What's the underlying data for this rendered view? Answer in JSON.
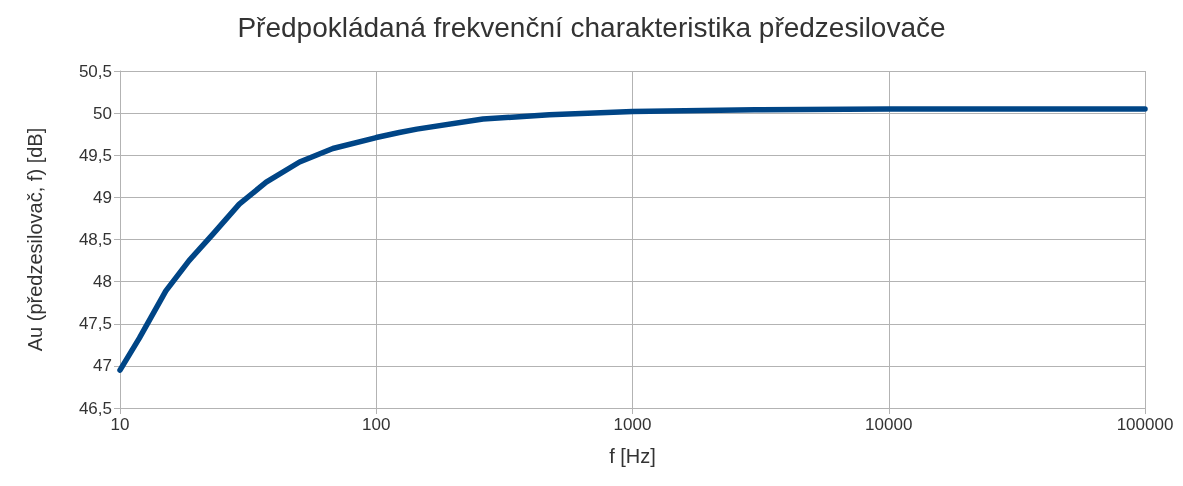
{
  "chart_data": {
    "type": "line",
    "title": "Předpokládaná frekvenční charakteristika předzesilovače",
    "xlabel": "f [Hz]",
    "ylabel": "Au (předzesilovač, f) [dB]",
    "x": [
      10,
      11.9,
      15.1,
      18.6,
      23,
      29.2,
      37.2,
      50.2,
      67.7,
      100,
      123,
      144,
      261,
      474,
      1000,
      3000,
      10000,
      30000,
      100000
    ],
    "series": [
      {
        "color": "#004586",
        "values": [
          46.95,
          47.33,
          47.89,
          48.25,
          48.56,
          48.92,
          49.18,
          49.42,
          49.58,
          49.71,
          49.77,
          49.81,
          49.93,
          49.98,
          50.02,
          50.04,
          50.05,
          50.05,
          50.05
        ]
      }
    ],
    "log": "x",
    "xlim": [
      10,
      100000
    ],
    "xticks": [
      10,
      100,
      1000,
      10000,
      100000
    ],
    "ylim": [
      46.5,
      50.5
    ],
    "yticks": [
      {
        "value": 46.5,
        "label": "46,5"
      },
      47,
      {
        "value": 47.5,
        "label": "47,5"
      },
      48,
      {
        "value": 48.5,
        "label": "48,5"
      },
      49,
      {
        "value": 49.5,
        "label": "49,5"
      },
      50,
      {
        "value": 50.5,
        "label": "50,5"
      }
    ],
    "grid": true,
    "marker": "none",
    "line_style": "solid"
  }
}
